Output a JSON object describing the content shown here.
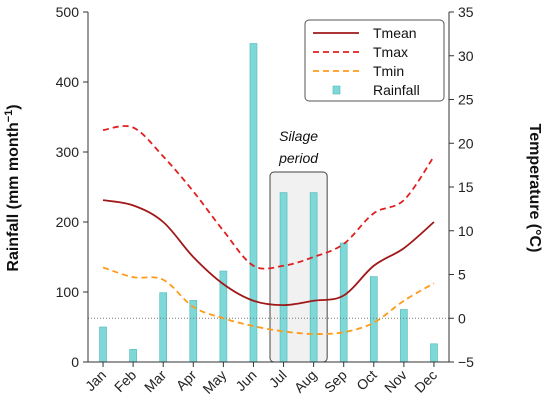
{
  "chart_data": {
    "type": "bar+line",
    "categories": [
      "Jan",
      "Feb",
      "Mar",
      "Apr",
      "May",
      "Jun",
      "Jul",
      "Aug",
      "Sep",
      "Oct",
      "Nov",
      "Dec"
    ],
    "left_axis": {
      "label": "Rainfall (mm month",
      "label_sup": "−1",
      "label_end": ")",
      "ylim": [
        0,
        500
      ],
      "ticks": [
        0,
        100,
        200,
        300,
        400,
        500
      ]
    },
    "right_axis": {
      "label": "Temperature (°C)",
      "ylim": [
        -5,
        35
      ],
      "ticks": [
        -5,
        0,
        5,
        10,
        15,
        20,
        25,
        30,
        35
      ],
      "tick_labels": [
        "−5",
        "0",
        "5",
        "10",
        "15",
        "20",
        "25",
        "30",
        "35"
      ]
    },
    "series": [
      {
        "name": "Rainfall",
        "axis": "left",
        "kind": "bar",
        "color": "#7fd8d8",
        "values": [
          50,
          18,
          99,
          88,
          130,
          455,
          242,
          242,
          170,
          122,
          75,
          26
        ]
      },
      {
        "name": "Tmean",
        "axis": "right",
        "kind": "line",
        "style": "solid",
        "color": "#a01818",
        "values": [
          13.5,
          12.9,
          11.0,
          7.0,
          3.9,
          2.0,
          1.5,
          2.0,
          2.6,
          6.0,
          8.0,
          11.0
        ]
      },
      {
        "name": "Tmax",
        "axis": "right",
        "kind": "line",
        "style": "dashed",
        "color": "#e02020",
        "values": [
          21.5,
          21.8,
          18.5,
          14.5,
          10.0,
          6.0,
          6.0,
          7.0,
          8.5,
          12.0,
          13.5,
          18.5
        ]
      },
      {
        "name": "Tmin",
        "axis": "right",
        "kind": "line",
        "style": "dashed",
        "color": "#ff9a1a",
        "values": [
          5.8,
          4.7,
          4.4,
          1.3,
          0.0,
          -0.9,
          -1.5,
          -1.8,
          -1.6,
          -0.5,
          2.0,
          4.0
        ]
      }
    ],
    "reference_line": {
      "axis": "right",
      "value": 0,
      "style": "dotted",
      "color": "#777777"
    },
    "annotation": {
      "lines": [
        "Silage",
        "period"
      ],
      "span": [
        "Jul",
        "Aug"
      ]
    },
    "legend": {
      "position": "top-right",
      "entries": [
        "Tmean",
        "Tmax",
        "Tmin",
        "Rainfall"
      ]
    },
    "grid": false
  }
}
